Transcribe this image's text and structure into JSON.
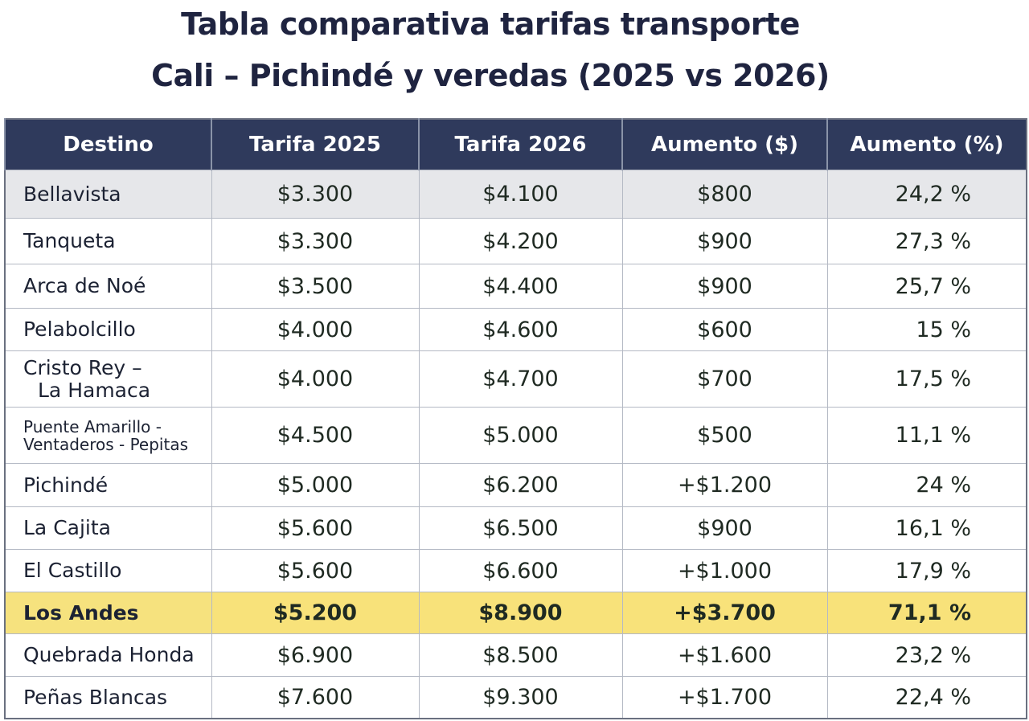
{
  "title": {
    "line1": "Tabla comparativa tarifas transporte",
    "line2": "Cali – Pichindé y veredas (2025 vs 2026)"
  },
  "colors": {
    "header_bg": "#2f3a5c",
    "highlight": "#f8e27a",
    "shaded_row": "#e6e7ea"
  },
  "headers": [
    "Destino",
    "Tarifa 2025",
    "Tarifa 2026",
    "Aumento ($)",
    "Aumento (%)"
  ],
  "rows": [
    {
      "dest": [
        "Bellavista"
      ],
      "t2025": "$3.300",
      "t2026": "$4.100",
      "inc": "$800",
      "pct": "24,2 %"
    },
    {
      "dest": [
        "Tanqueta"
      ],
      "t2025": "$3.300",
      "t2026": "$4.200",
      "inc": "$900",
      "pct": "27,3 %"
    },
    {
      "dest": [
        "Arca de Noé"
      ],
      "t2025": "$3.500",
      "t2026": "$4.400",
      "inc": "$900",
      "pct": "25,7 %"
    },
    {
      "dest": [
        "Pelabolcillo"
      ],
      "t2025": "$4.000",
      "t2026": "$4.600",
      "inc": "$600",
      "pct": "15 %"
    },
    {
      "dest": [
        "Cristo Rey –",
        "La Hamaca"
      ],
      "t2025": "$4.000",
      "t2026": "$4.700",
      "inc": "$700",
      "pct": "17,5 %"
    },
    {
      "dest": [
        "Puente Amarillo -",
        "Ventaderos - Pepitas"
      ],
      "t2025": "$4.500",
      "t2026": "$5.000",
      "inc": "$500",
      "pct": "11,1 %"
    },
    {
      "dest": [
        "Pichindé"
      ],
      "t2025": "$5.000",
      "t2026": "$6.200",
      "inc": "+$1.200",
      "pct": "24 %"
    },
    {
      "dest": [
        "La Cajita"
      ],
      "t2025": "$5.600",
      "t2026": "$6.500",
      "inc": "$900",
      "pct": "16,1 %"
    },
    {
      "dest": [
        "El Castillo"
      ],
      "t2025": "$5.600",
      "t2026": "$6.600",
      "inc": "+$1.000",
      "pct": "17,9 %"
    },
    {
      "dest": [
        "Los Andes"
      ],
      "t2025": "$5.200",
      "t2026": "$8.900",
      "inc": "+$3.700",
      "pct": "71,1 %",
      "highlight": true
    },
    {
      "dest": [
        "Quebrada Honda"
      ],
      "t2025": "$6.900",
      "t2026": "$8.500",
      "inc": "+$1.600",
      "pct": "23,2 %"
    },
    {
      "dest": [
        "Peñas Blancas"
      ],
      "t2025": "$7.600",
      "t2026": "$9.300",
      "inc": "+$1.700",
      "pct": "22,4 %"
    }
  ]
}
